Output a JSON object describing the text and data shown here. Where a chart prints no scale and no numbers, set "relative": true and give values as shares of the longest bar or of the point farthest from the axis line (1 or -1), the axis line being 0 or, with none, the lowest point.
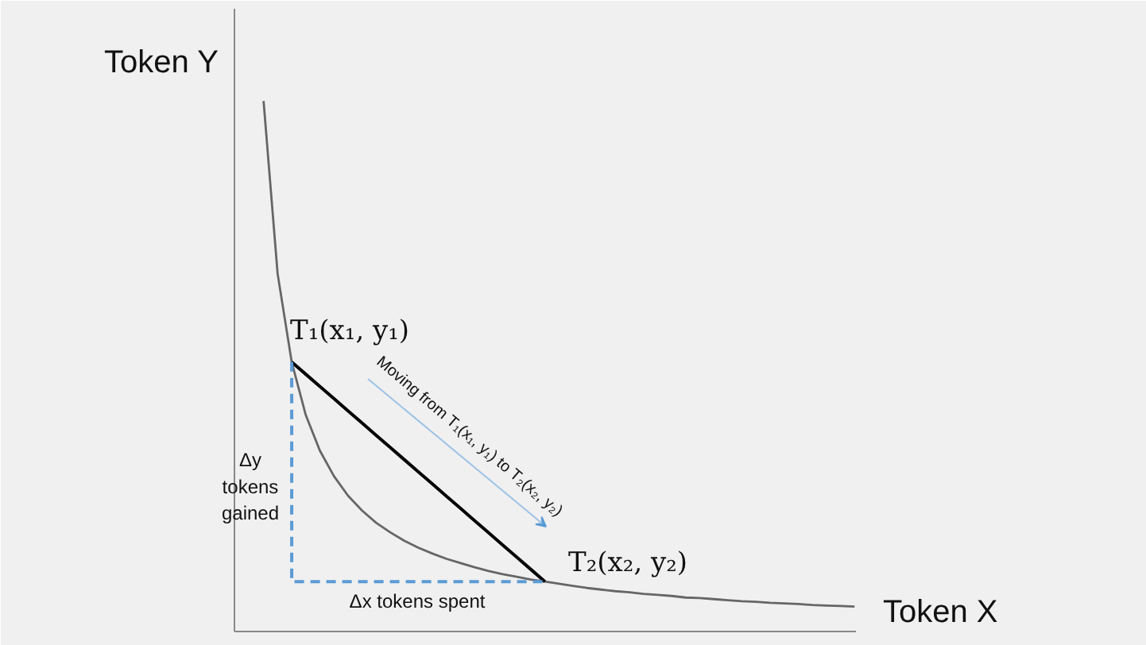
{
  "chart_data": {
    "type": "line",
    "relative": true,
    "xlabel": "Token X",
    "ylabel": "Token Y",
    "categories": [
      null,
      null,
      null,
      null,
      null,
      null,
      null,
      null,
      null,
      null,
      null,
      null,
      null,
      null,
      null,
      null,
      null,
      null,
      null,
      null,
      null,
      null,
      null,
      null,
      null,
      null,
      null,
      null,
      null,
      null,
      null,
      null,
      null,
      null,
      null,
      null,
      null,
      null,
      null,
      null,
      null,
      null,
      null
    ],
    "series": [
      {
        "color": "#666666",
        "values": [
          1,
          0.674,
          0.508,
          0.408,
          0.341,
          0.293,
          0.256,
          0.228,
          0.205,
          0.187,
          0.171,
          0.158,
          0.147,
          0.137,
          0.129,
          0.121,
          0.114,
          0.108,
          0.103,
          0.098,
          0.094,
          0.09,
          0.086,
          0.082,
          0.079,
          0.076,
          0.074,
          0.071,
          0.069,
          0.067,
          0.064,
          0.063,
          0.061,
          0.059,
          0.057,
          0.056,
          0.054,
          0.053,
          0.052,
          0.05,
          0.049,
          0.048,
          0.047
        ]
      },
      {
        "type": "line",
        "color": "#000000",
        "values": [
          null,
          null,
          0.508,
          0.485,
          0.462,
          0.439,
          0.416,
          0.393,
          0.37,
          0.347,
          0.324,
          0.301,
          0.278,
          0.255,
          0.232,
          0.209,
          0.186,
          0.163,
          0.14,
          0.117,
          0.094,
          null,
          null,
          null,
          null,
          null,
          null,
          null,
          null,
          null,
          null,
          null,
          null,
          null,
          null,
          null,
          null,
          null,
          null,
          null,
          null,
          null,
          null
        ]
      },
      {
        "type": "step",
        "color": "#5b9bd5",
        "line_style": "dashed",
        "values": [
          null,
          null,
          0.508,
          0.094,
          0.094,
          0.094,
          0.094,
          0.094,
          0.094,
          0.094,
          0.094,
          0.094,
          0.094,
          0.094,
          0.094,
          0.094,
          0.094,
          0.094,
          0.094,
          0.094,
          0.094,
          null,
          null,
          null,
          null,
          null,
          null,
          null,
          null,
          null,
          null,
          null,
          null,
          null,
          null,
          null,
          null,
          null,
          null,
          null,
          null,
          null,
          null
        ]
      }
    ],
    "annotations": [
      "T₁(x₁, y₁)",
      "T₂(x₂, y₂)",
      "Moving from T₁(x₁, y₁) to T₂(x₂, y₂)",
      "Δy\ntokens\ngained",
      "Δx tokens spent"
    ],
    "grid": false
  }
}
